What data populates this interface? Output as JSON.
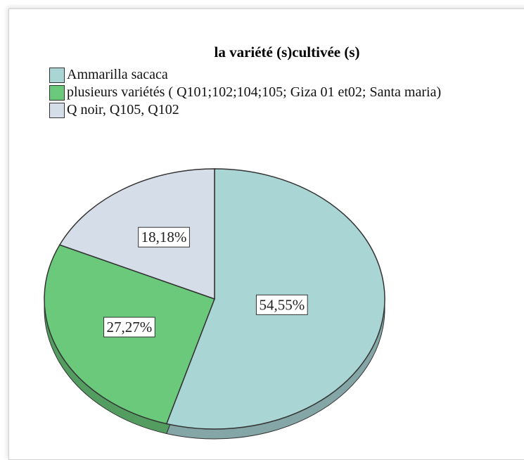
{
  "chart_data": {
    "type": "pie",
    "title": "la variété (s)cultivée (s)",
    "categories": [
      "Ammarilla sacaca",
      "plusieurs variétés ( Q101;102;104;105; Giza 01 et02; Santa maria)",
      "Q noir, Q105, Q102"
    ],
    "values": [
      54.55,
      27.27,
      18.18
    ],
    "value_labels": [
      "54,55%",
      "27,27%",
      "18,18%"
    ],
    "colors": [
      "#a9d5d5",
      "#6bc97c",
      "#d5dde9"
    ],
    "legend": "top-left"
  }
}
